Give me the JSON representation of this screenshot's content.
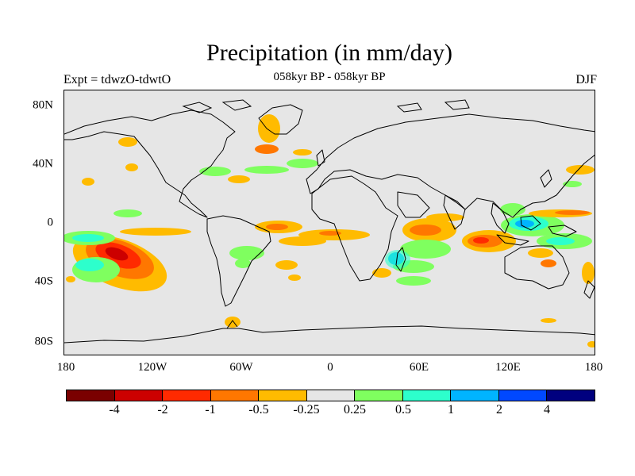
{
  "title": "Precipitation (in mm/day)",
  "subtitle": "058kyr BP - 058kyr BP",
  "experiment_label": "Expt = tdwzO-tdwtO",
  "season_label": "DJF",
  "map": {
    "background_color": "#e6e6e6",
    "coastline_color": "#000000",
    "lat_labels": [
      "80N",
      "40N",
      "0",
      "40S",
      "80S"
    ],
    "lon_labels": [
      "180",
      "120W",
      "60W",
      "0",
      "60E",
      "120E",
      "180"
    ]
  },
  "colorbar": {
    "colors": [
      "#7a0000",
      "#cc0000",
      "#ff2a00",
      "#ff7700",
      "#ffbb00",
      "#e6e6e6",
      "#7fff5f",
      "#2dffcc",
      "#00b4ff",
      "#0048ff",
      "#00007f"
    ],
    "labels": [
      "-4",
      "-2",
      "-1",
      "-0.5",
      "-0.25",
      "0.25",
      "0.5",
      "1",
      "2",
      "4"
    ]
  }
}
